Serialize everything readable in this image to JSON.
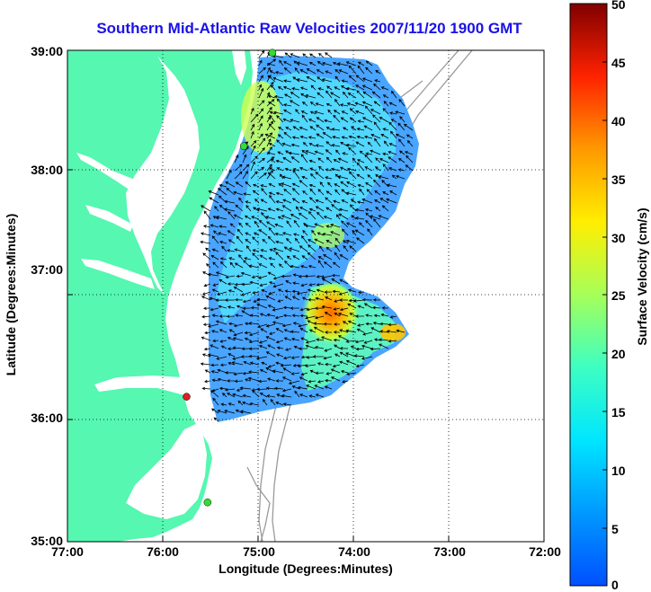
{
  "title": "Southern Mid-Atlantic Raw Velocities 2007/11/20 1900 GMT",
  "x_axis_label": "Longitude (Degrees:Minutes)",
  "y_axis_label": "Latitude (Degrees:Minutes)",
  "x_ticks": [
    "77:00",
    "76:00",
    "75:00",
    "74:00",
    "73:00",
    "72:00"
  ],
  "y_ticks": [
    "39:00",
    "38:00",
    "37:00",
    "36:00",
    "35:00"
  ],
  "colorbar": {
    "label": "Surface Velocity (cm/s)",
    "ticks": [
      "50",
      "45",
      "40",
      "35",
      "30",
      "25",
      "20",
      "15",
      "10",
      "5",
      "0"
    ],
    "range": [
      0,
      50
    ]
  },
  "colors": {
    "land": "#55f7b1",
    "water": "#ffffff",
    "title": "#1a12e6",
    "station_active": "#33dd33",
    "station_alert": "#e02020",
    "bathymetry": "#9a9a9a"
  },
  "map": {
    "lon_range": [
      -77,
      -72
    ],
    "lat_range": [
      35,
      39
    ],
    "grid": "dotted",
    "stations": [
      {
        "lon": -74.85,
        "lat": 38.98,
        "status": "active"
      },
      {
        "lon": -75.15,
        "lat": 38.22,
        "status": "active"
      },
      {
        "lon": -75.75,
        "lat": 36.18,
        "status": "alert"
      },
      {
        "lon": -75.53,
        "lat": 35.32,
        "status": "active"
      }
    ]
  }
}
